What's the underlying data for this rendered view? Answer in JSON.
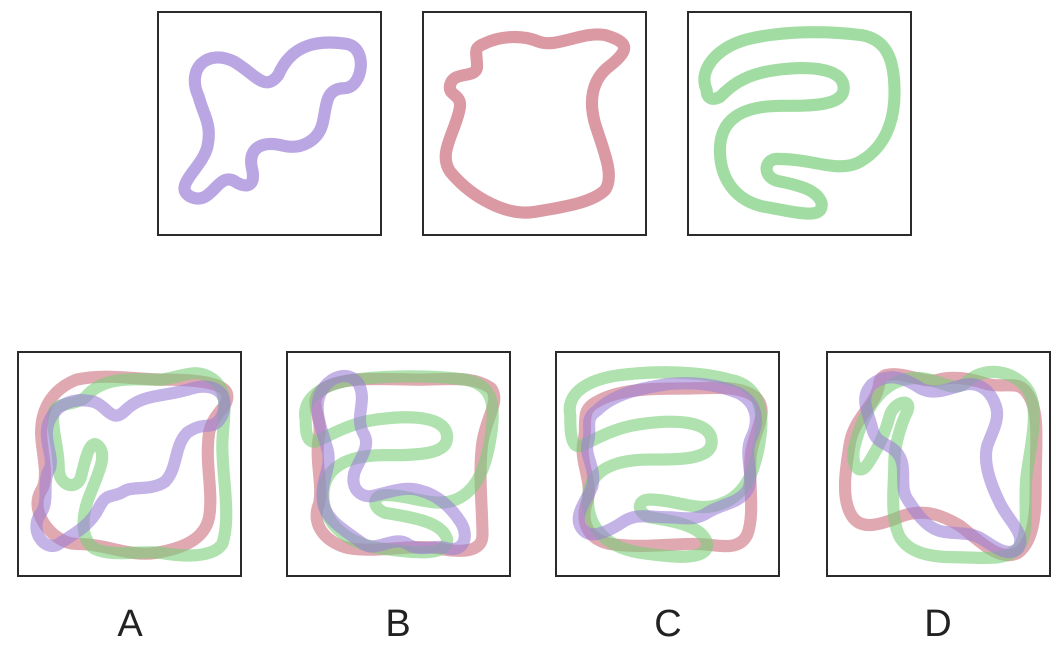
{
  "colors": {
    "purple": "#9c80d6",
    "red": "#cc6e7c",
    "green": "#79cf7a"
  },
  "options": [
    {
      "label": "A"
    },
    {
      "label": "B"
    },
    {
      "label": "C"
    },
    {
      "label": "D"
    }
  ]
}
